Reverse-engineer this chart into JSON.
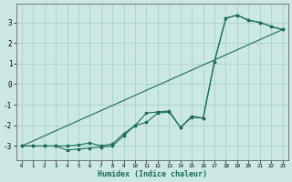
{
  "xlabel": "Humidex (Indice chaleur)",
  "background_color": "#cce8e4",
  "grid_color": "#aacfcb",
  "line_color": "#1a6b5a",
  "xlim": [
    -0.5,
    23.5
  ],
  "ylim": [
    -3.7,
    3.9
  ],
  "x_ticks": [
    0,
    1,
    2,
    3,
    4,
    5,
    6,
    7,
    8,
    9,
    10,
    11,
    12,
    13,
    14,
    15,
    16,
    17,
    18,
    19,
    20,
    21,
    22,
    23
  ],
  "y_ticks": [
    -3,
    -2,
    -1,
    0,
    1,
    2,
    3
  ],
  "line1_x": [
    0,
    1,
    2,
    3,
    4,
    5,
    6,
    7,
    8,
    9,
    10,
    11,
    12,
    13,
    14,
    15,
    16,
    17,
    18,
    19,
    20,
    21,
    22,
    23
  ],
  "line1_y": [
    -3.0,
    -3.0,
    -3.0,
    -3.0,
    -3.2,
    -3.15,
    -3.1,
    -3.05,
    -3.0,
    -2.5,
    -2.0,
    -1.85,
    -1.4,
    -1.35,
    -2.1,
    -1.6,
    -1.65,
    1.1,
    3.2,
    3.35,
    3.1,
    3.0,
    2.8,
    2.65
  ],
  "line2_x": [
    0,
    1,
    2,
    3,
    4,
    5,
    6,
    7,
    8,
    9,
    10,
    11,
    12,
    13,
    14,
    15,
    16,
    17,
    18,
    19,
    20,
    21,
    22,
    23
  ],
  "line2_y": [
    -3.0,
    -3.0,
    -3.0,
    -3.0,
    -3.0,
    -2.95,
    -2.85,
    -3.0,
    -2.9,
    -2.4,
    -2.0,
    -1.4,
    -1.35,
    -1.3,
    -2.1,
    -1.55,
    -1.65,
    1.1,
    3.2,
    3.35,
    3.1,
    3.0,
    2.8,
    2.65
  ],
  "line3_x": [
    0,
    23
  ],
  "line3_y": [
    -3.0,
    2.65
  ]
}
